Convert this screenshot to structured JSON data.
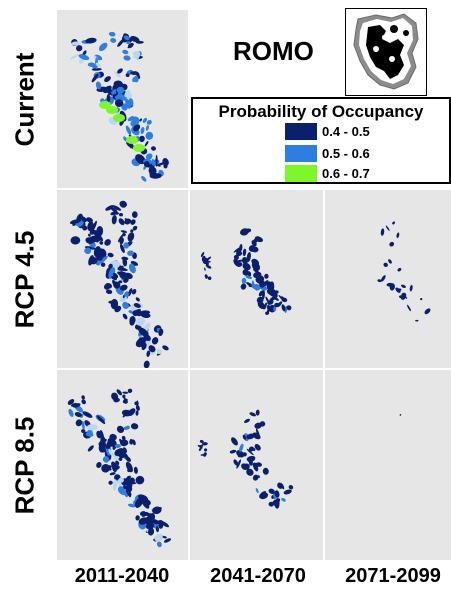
{
  "title": "ROMO",
  "rows": [
    "Current",
    "RCP 4.5",
    "RCP 8.5"
  ],
  "columns": [
    "2011-2040",
    "2041-2070",
    "2071-2099"
  ],
  "legend": {
    "title": "Probability of Occupancy",
    "items": [
      {
        "label": "0.4 - 0.5",
        "color": "#0a1f6e"
      },
      {
        "label": "0.5 - 0.6",
        "color": "#2e7de0"
      },
      {
        "label": "0.6 - 0.7",
        "color": "#7ef72a"
      }
    ]
  },
  "colors": {
    "panel_background": "#e6e6e6",
    "low": "#0a1f6e",
    "mid": "#2e7de0",
    "high": "#7ef72a",
    "light": "#bcd6f2"
  },
  "icons": {
    "inset": "park-boundary-map-icon"
  }
}
